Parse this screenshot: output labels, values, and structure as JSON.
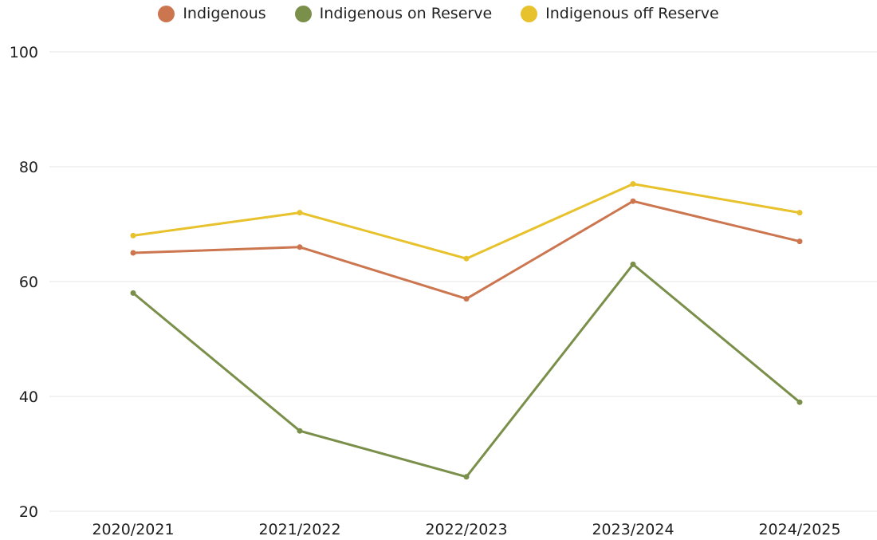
{
  "chart_data": {
    "type": "line",
    "title": "",
    "xlabel": "",
    "ylabel": "",
    "categories": [
      "2020/2021",
      "2021/2022",
      "2022/2023",
      "2023/2024",
      "2024/2025"
    ],
    "ylim": [
      20,
      100
    ],
    "yticks": [
      20,
      40,
      60,
      80,
      100
    ],
    "grid": "horizontal",
    "legend_position": "top-center",
    "series": [
      {
        "name": "Indigenous",
        "color": "#cc7650",
        "values": [
          65,
          66,
          57,
          74,
          67
        ]
      },
      {
        "name": "Indigenous on Reserve",
        "color": "#7a8f4a",
        "values": [
          58,
          34,
          26,
          63,
          39
        ]
      },
      {
        "name": "Indigenous off Reserve",
        "color": "#e8c22c",
        "values": [
          68,
          72,
          64,
          77,
          72
        ]
      }
    ]
  }
}
